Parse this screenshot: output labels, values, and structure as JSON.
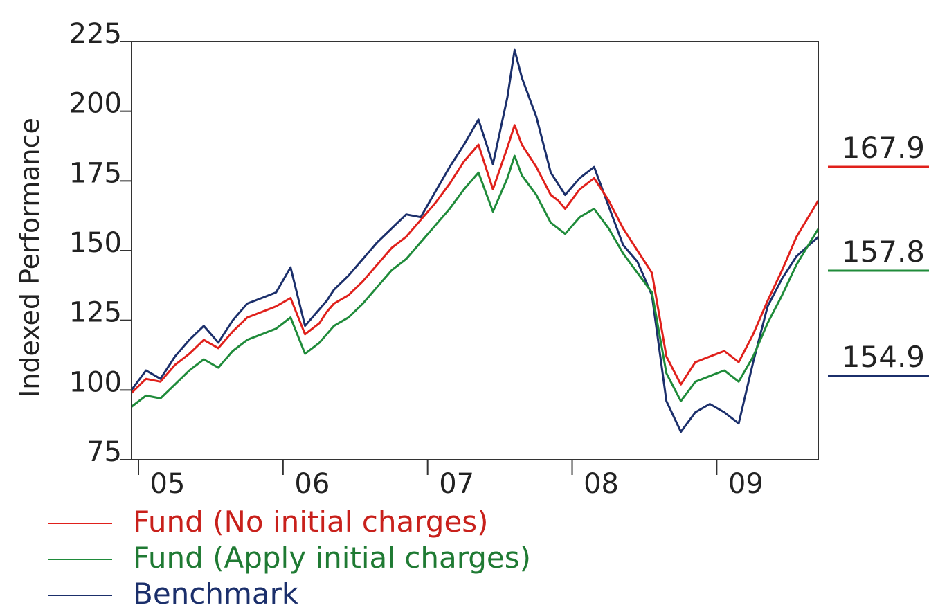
{
  "chart_data": {
    "type": "line",
    "title": "",
    "xlabel": "",
    "ylabel": "Indexed Performance",
    "ylim": [
      75,
      225
    ],
    "yticks": [
      75,
      100,
      125,
      150,
      175,
      200,
      225
    ],
    "xticks": [
      "05",
      "06",
      "07",
      "08",
      "09"
    ],
    "xlim": [
      0,
      4.75
    ],
    "grid": false,
    "legend_position": "bottom-left",
    "series": [
      {
        "name": "Fund (No initial charges)",
        "color": "#e0201b",
        "end_label": "167.9",
        "x": [
          0,
          0.1,
          0.2,
          0.3,
          0.4,
          0.5,
          0.6,
          0.7,
          0.8,
          0.9,
          1.0,
          1.1,
          1.2,
          1.3,
          1.35,
          1.4,
          1.5,
          1.6,
          1.7,
          1.8,
          1.9,
          2.0,
          2.1,
          2.2,
          2.3,
          2.4,
          2.5,
          2.6,
          2.65,
          2.7,
          2.8,
          2.9,
          2.95,
          3.0,
          3.1,
          3.2,
          3.3,
          3.4,
          3.5,
          3.6,
          3.7,
          3.8,
          3.9,
          4.0,
          4.1,
          4.2,
          4.3,
          4.4,
          4.5,
          4.6,
          4.75
        ],
        "y": [
          99,
          104,
          103,
          109,
          113,
          118,
          115,
          121,
          126,
          128,
          130,
          133,
          120,
          124,
          128,
          131,
          134,
          139,
          145,
          151,
          155,
          161,
          167,
          174,
          182,
          188,
          172,
          187,
          195,
          188,
          180,
          170,
          168,
          165,
          172,
          176,
          168,
          158,
          150,
          142,
          112,
          102,
          110,
          112,
          114,
          110,
          120,
          132,
          143,
          155,
          167.9
        ]
      },
      {
        "name": "Fund (Apply initial charges)",
        "color": "#1f8b3a",
        "end_label": "157.8",
        "x": [
          0,
          0.1,
          0.2,
          0.3,
          0.4,
          0.5,
          0.6,
          0.7,
          0.8,
          0.9,
          1.0,
          1.1,
          1.2,
          1.3,
          1.35,
          1.4,
          1.5,
          1.6,
          1.7,
          1.8,
          1.9,
          2.0,
          2.1,
          2.2,
          2.3,
          2.4,
          2.5,
          2.6,
          2.65,
          2.7,
          2.8,
          2.9,
          2.95,
          3.0,
          3.1,
          3.2,
          3.3,
          3.4,
          3.5,
          3.6,
          3.7,
          3.8,
          3.9,
          4.0,
          4.1,
          4.2,
          4.3,
          4.4,
          4.5,
          4.6,
          4.75
        ],
        "y": [
          94,
          98,
          97,
          102,
          107,
          111,
          108,
          114,
          118,
          120,
          122,
          126,
          113,
          117,
          120,
          123,
          126,
          131,
          137,
          143,
          147,
          153,
          159,
          165,
          172,
          178,
          164,
          176,
          184,
          177,
          170,
          160,
          158,
          156,
          162,
          165,
          158,
          149,
          142,
          135,
          106,
          96,
          103,
          105,
          107,
          103,
          112,
          124,
          134,
          145,
          157.8
        ]
      },
      {
        "name": "Benchmark",
        "color": "#1b2f6b",
        "end_label": "154.9",
        "x": [
          0,
          0.1,
          0.2,
          0.3,
          0.4,
          0.5,
          0.6,
          0.7,
          0.8,
          0.9,
          1.0,
          1.1,
          1.2,
          1.3,
          1.35,
          1.4,
          1.5,
          1.6,
          1.7,
          1.8,
          1.9,
          2.0,
          2.1,
          2.2,
          2.3,
          2.4,
          2.5,
          2.6,
          2.65,
          2.7,
          2.8,
          2.9,
          2.95,
          3.0,
          3.1,
          3.2,
          3.3,
          3.4,
          3.5,
          3.6,
          3.7,
          3.8,
          3.9,
          4.0,
          4.1,
          4.2,
          4.3,
          4.4,
          4.5,
          4.6,
          4.75
        ],
        "y": [
          100,
          107,
          104,
          112,
          118,
          123,
          117,
          125,
          131,
          133,
          135,
          144,
          123,
          129,
          132,
          136,
          141,
          147,
          153,
          158,
          163,
          162,
          171,
          180,
          188,
          197,
          181,
          205,
          222,
          212,
          198,
          178,
          174,
          170,
          176,
          180,
          166,
          152,
          146,
          134,
          96,
          85,
          92,
          95,
          92,
          88,
          110,
          130,
          140,
          148,
          154.9
        ]
      }
    ]
  }
}
